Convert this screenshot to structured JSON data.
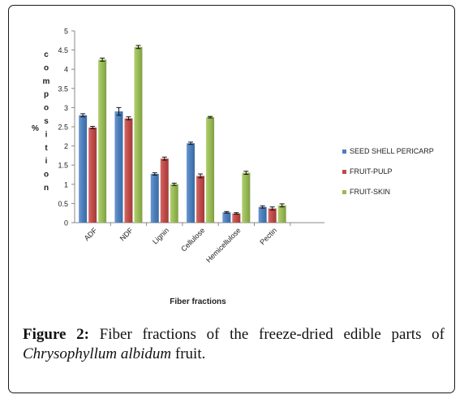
{
  "chart_data": {
    "type": "bar",
    "categories": [
      "ADF",
      "NDF",
      "Lignin",
      "Cellulose",
      "Hemicellulose",
      "Pectin"
    ],
    "series": [
      {
        "name": "SEED SHELL PERICARP",
        "color": "#4a7ebb",
        "values": [
          2.8,
          2.9,
          1.27,
          2.07,
          0.27,
          0.41
        ],
        "errors": [
          0.04,
          0.1,
          0.03,
          0.03,
          0.02,
          0.03
        ]
      },
      {
        "name": "FRUIT-PULP",
        "color": "#be4b48",
        "values": [
          2.48,
          2.72,
          1.67,
          1.22,
          0.24,
          0.37
        ],
        "errors": [
          0.03,
          0.04,
          0.04,
          0.05,
          0.02,
          0.04
        ]
      },
      {
        "name": "FRUIT-SKIN",
        "color": "#98b954",
        "values": [
          4.25,
          4.58,
          1.0,
          2.75,
          1.3,
          0.45
        ],
        "errors": [
          0.04,
          0.04,
          0.03,
          0.02,
          0.04,
          0.04
        ]
      }
    ],
    "yticks": [
      "0",
      "0.5",
      "1",
      "1.5",
      "2",
      "2.5",
      "3",
      "3.5",
      "4",
      "4.5",
      "5"
    ],
    "ylim": [
      0,
      5
    ],
    "ylabel_prefix": "%",
    "ylabel": "composition",
    "xlabel": "Fiber fractions",
    "legend_position": "right",
    "grid": false
  },
  "caption": {
    "figure_label": "Figure 2:",
    "text": " Fiber fractions of the freeze-dried edible parts of ",
    "species": "Chrysophyllum albidum",
    "suffix": " fruit."
  }
}
